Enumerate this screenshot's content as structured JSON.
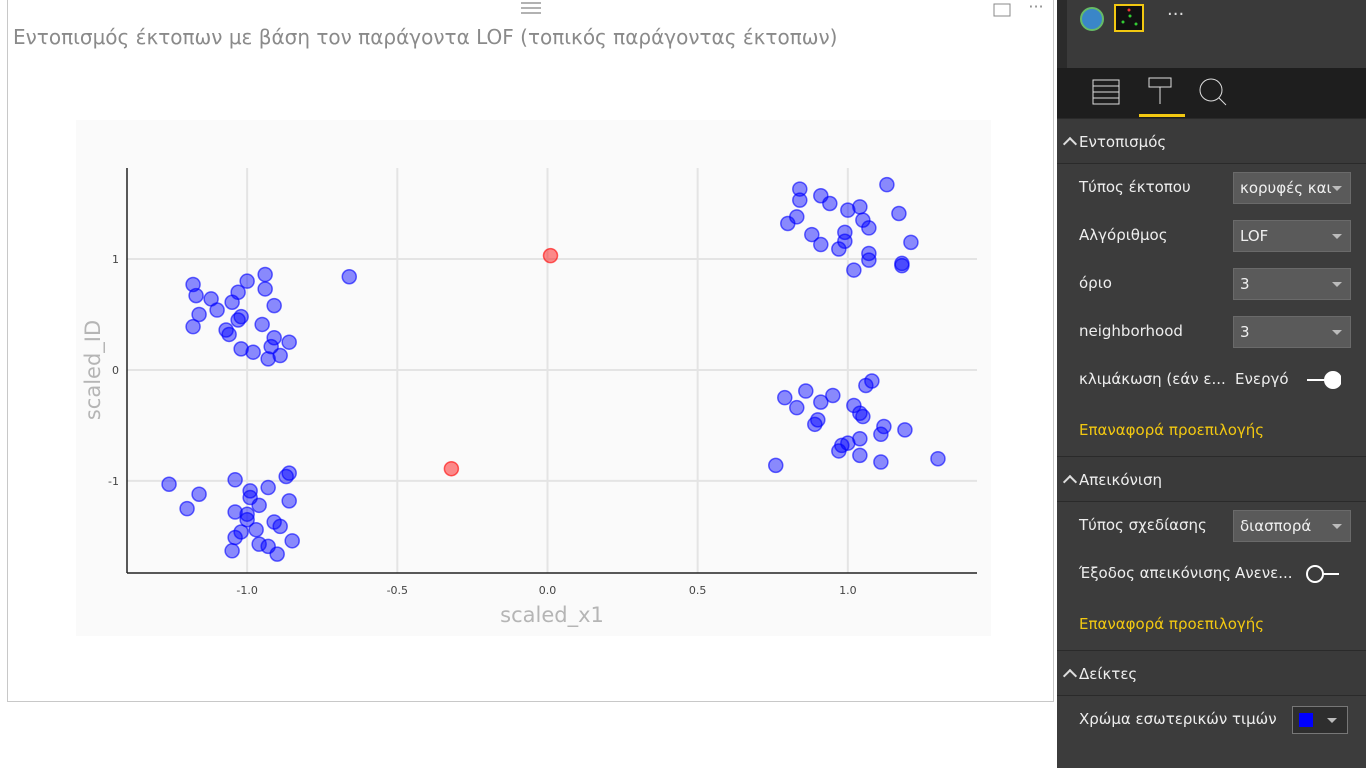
{
  "chart_data": {
    "type": "scatter",
    "title": "Εντοπισμός έκτοπων με βάση τον παράγοντα LOF (τοπικός παράγοντας έκτοπων)",
    "xlabel": "scaled_x1",
    "ylabel": "scaled_ID",
    "xlim": [
      -1.4,
      1.43
    ],
    "ylim": [
      -1.83,
      1.82
    ],
    "xticks": [
      {
        "value": -1,
        "label": "-1.0"
      },
      {
        "value": -0.5,
        "label": "-0.5"
      },
      {
        "value": 0,
        "label": "0.0"
      },
      {
        "value": 0.5,
        "label": "0.5"
      },
      {
        "value": 1,
        "label": "1.0"
      }
    ],
    "yticks": [
      -1,
      0,
      1
    ],
    "grid": true,
    "series": [
      {
        "color": "#0000ff",
        "x": [
          -1.18,
          -1.17,
          -1.12,
          -1.1,
          -1.16,
          -1.18,
          -1.05,
          -1.03,
          -1.0,
          -0.94,
          -0.94,
          -0.91,
          -1.03,
          -1.02,
          -1.07,
          -1.06,
          -0.95,
          -0.91,
          -0.86,
          -0.92,
          -1.02,
          -0.98,
          -0.89,
          -0.93,
          -0.66,
          -1.26,
          -1.16,
          -1.2,
          -1.04,
          -0.99,
          -0.99,
          -0.93,
          -0.86,
          -0.87,
          -0.86,
          -0.96,
          -1.04,
          -1.0,
          -1.0,
          -0.91,
          -0.89,
          -0.97,
          -1.02,
          -1.04,
          -0.96,
          -0.85,
          -0.93,
          -0.9,
          -1.05,
          0.84,
          0.84,
          0.91,
          0.94,
          1.13,
          1.04,
          1.0,
          1.05,
          1.17,
          1.07,
          0.83,
          0.8,
          0.88,
          0.99,
          0.91,
          0.99,
          0.97,
          1.21,
          1.07,
          1.07,
          1.18,
          1.18,
          1.02,
          1.08,
          1.06,
          0.86,
          0.95,
          0.79,
          0.91,
          0.83,
          1.02,
          1.04,
          1.05,
          0.9,
          0.89,
          1.12,
          1.19,
          1.11,
          1.04,
          0.98,
          1.0,
          0.97,
          1.04,
          1.11,
          1.3,
          0.76
        ],
        "y": [
          0.77,
          0.67,
          0.64,
          0.54,
          0.5,
          0.39,
          0.61,
          0.7,
          0.8,
          0.86,
          0.73,
          0.58,
          0.45,
          0.48,
          0.36,
          0.32,
          0.41,
          0.29,
          0.25,
          0.21,
          0.19,
          0.16,
          0.13,
          0.1,
          0.84,
          -1.03,
          -1.12,
          -1.25,
          -0.99,
          -1.09,
          -1.15,
          -1.06,
          -0.93,
          -0.96,
          -1.18,
          -1.22,
          -1.28,
          -1.3,
          -1.35,
          -1.37,
          -1.41,
          -1.44,
          -1.46,
          -1.51,
          -1.57,
          -1.54,
          -1.59,
          -1.66,
          -1.63,
          1.63,
          1.53,
          1.57,
          1.5,
          1.67,
          1.47,
          1.44,
          1.35,
          1.41,
          1.28,
          1.38,
          1.32,
          1.22,
          1.24,
          1.13,
          1.16,
          1.09,
          1.15,
          1.05,
          0.99,
          0.96,
          0.94,
          0.9,
          -0.1,
          -0.14,
          -0.19,
          -0.23,
          -0.25,
          -0.29,
          -0.34,
          -0.32,
          -0.39,
          -0.42,
          -0.45,
          -0.49,
          -0.51,
          -0.54,
          -0.58,
          -0.62,
          -0.68,
          -0.66,
          -0.73,
          -0.77,
          -0.83,
          -0.8,
          -0.86
        ]
      },
      {
        "color": "#ff0000",
        "x": [
          0.01,
          -0.32
        ],
        "y": [
          1.03,
          -0.89
        ]
      }
    ]
  },
  "panel": {
    "sections": [
      {
        "title": "Εντοπισμός",
        "rows": [
          {
            "label": "Τύπος έκτοπου",
            "control": "dropdown",
            "value": "κορυφές και"
          },
          {
            "label": "Αλγόριθμος",
            "control": "dropdown",
            "value": "LOF"
          },
          {
            "label": "όριο",
            "control": "dropdown",
            "value": "3"
          },
          {
            "label": "neighborhood",
            "control": "dropdown",
            "value": "3"
          },
          {
            "label": "κλιμάκωση (εάν ε...",
            "control": "toggle",
            "on": true,
            "value": "Ενεργό"
          }
        ],
        "reset": "Επαναφορά προεπιλογής"
      },
      {
        "title": "Απεικόνιση",
        "rows": [
          {
            "label": "Τύπος σχεδίασης",
            "control": "dropdown",
            "value": "διασπορά"
          },
          {
            "label": "Έξοδος απεικόνισης",
            "control": "toggle",
            "on": false,
            "value": "Ανενε..."
          }
        ],
        "reset": "Επαναφορά προεπιλογής"
      },
      {
        "title": "Δείκτες",
        "rows": [
          {
            "label": "Χρώμα εσωτερικών τιμών",
            "control": "color",
            "color": "#0000ff"
          }
        ]
      }
    ]
  }
}
